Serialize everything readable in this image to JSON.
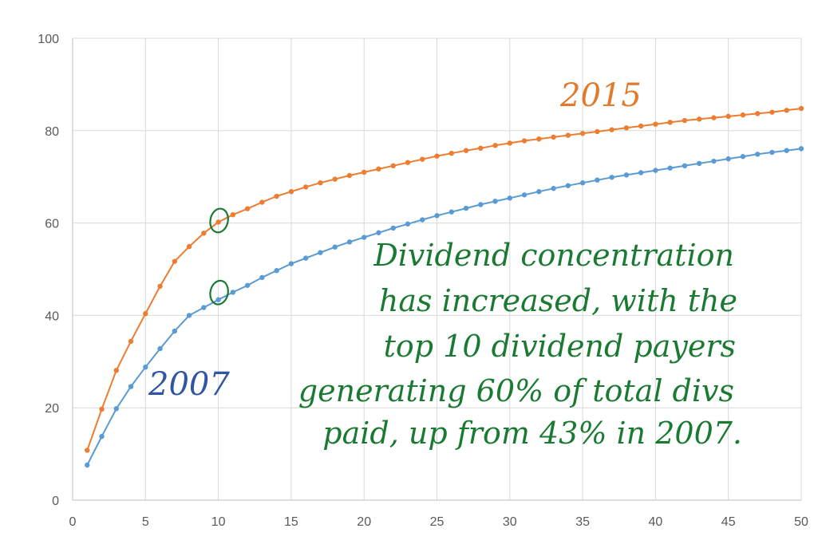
{
  "chart_data": {
    "type": "line",
    "title": "",
    "xlabel": "",
    "ylabel": "",
    "xlim": [
      0,
      50
    ],
    "ylim": [
      0,
      100
    ],
    "x_ticks": [
      0,
      5,
      10,
      15,
      20,
      25,
      30,
      35,
      40,
      45,
      50
    ],
    "y_ticks": [
      0,
      20,
      40,
      60,
      80,
      100
    ],
    "grid": true,
    "x": [
      1,
      2,
      3,
      4,
      5,
      6,
      7,
      8,
      9,
      10,
      11,
      12,
      13,
      14,
      15,
      16,
      17,
      18,
      19,
      20,
      21,
      22,
      23,
      24,
      25,
      26,
      27,
      28,
      29,
      30,
      31,
      32,
      33,
      34,
      35,
      36,
      37,
      38,
      39,
      40,
      41,
      42,
      43,
      44,
      45,
      46,
      47,
      48,
      49,
      50
    ],
    "series": [
      {
        "name": "2007",
        "color": "#5b9bd5",
        "values": [
          7.6,
          13.8,
          19.8,
          24.6,
          28.8,
          32.8,
          36.6,
          40.0,
          41.7,
          43.4,
          45.0,
          46.5,
          48.2,
          49.7,
          51.2,
          52.4,
          53.6,
          54.8,
          55.9,
          56.9,
          57.9,
          58.9,
          59.8,
          60.7,
          61.6,
          62.4,
          63.2,
          64.0,
          64.7,
          65.4,
          66.1,
          66.8,
          67.5,
          68.1,
          68.7,
          69.3,
          69.9,
          70.4,
          70.9,
          71.4,
          71.9,
          72.4,
          72.9,
          73.4,
          73.9,
          74.4,
          74.9,
          75.3,
          75.7,
          76.1
        ]
      },
      {
        "name": "2015",
        "color": "#ed7d31",
        "values": [
          10.8,
          19.7,
          28.1,
          34.4,
          40.4,
          46.3,
          51.7,
          54.9,
          57.8,
          60.2,
          61.8,
          63.1,
          64.5,
          65.8,
          66.8,
          67.8,
          68.7,
          69.5,
          70.3,
          71.0,
          71.7,
          72.4,
          73.1,
          73.8,
          74.5,
          75.1,
          75.7,
          76.2,
          76.8,
          77.3,
          77.8,
          78.2,
          78.6,
          79.0,
          79.4,
          79.8,
          80.2,
          80.6,
          81.0,
          81.4,
          81.8,
          82.2,
          82.5,
          82.8,
          83.1,
          83.4,
          83.7,
          84.0,
          84.4,
          84.8
        ]
      }
    ],
    "annotations": {
      "label_2015": "2015",
      "label_2007": "2007",
      "note_lines": [
        "Dividend concentration",
        "has increased, with the",
        "top 10 dividend payers",
        "generating 60% of total divs",
        "paid, up from 43% in 2007."
      ],
      "highlight_x": 10,
      "label_2015_color": "#e07b2e",
      "label_2007_color": "#2f55a4",
      "note_color": "#1a7a32"
    }
  }
}
